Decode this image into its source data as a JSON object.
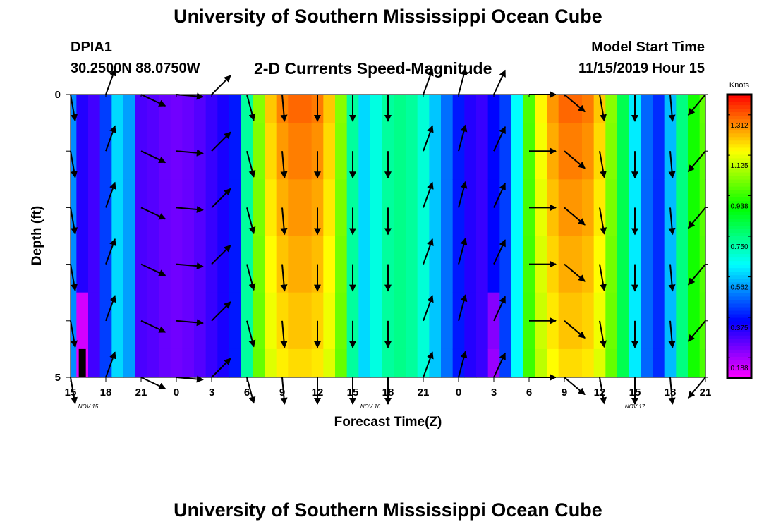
{
  "header": {
    "title": "University of Southern Mississippi Ocean Cube",
    "station": "DPIA1",
    "coords": "30.2500N 88.0750W",
    "subtitle": "2-D Currents Speed-Magnitude",
    "model_label": "Model Start Time",
    "model_time": "11/15/2019 Hour 15"
  },
  "footer": {
    "title": "University of Southern Mississippi Ocean Cube"
  },
  "chart_data": {
    "type": "heatmap",
    "title": "2-D Currents Speed-Magnitude",
    "xlabel": "Forecast Time(Z)",
    "ylabel": "Depth (ft)",
    "x_hours": [
      15,
      16,
      17,
      18,
      19,
      20,
      21,
      22,
      23,
      24,
      25,
      26,
      27,
      28,
      29,
      30,
      31,
      32,
      33,
      34,
      35,
      36,
      37,
      38,
      39,
      40,
      41,
      42,
      43,
      44,
      45,
      46,
      47,
      48,
      49,
      50,
      51,
      52,
      53,
      54,
      55,
      56,
      57,
      58,
      59,
      60,
      61,
      62,
      63,
      64,
      65,
      66,
      67,
      68,
      69
    ],
    "xlim": [
      15,
      69
    ],
    "ylim": [
      0,
      5
    ],
    "x_tick_labels": [
      "15",
      "18",
      "21",
      "0",
      "3",
      "6",
      "9",
      "12",
      "15",
      "18",
      "21",
      "0",
      "3",
      "6",
      "9",
      "12",
      "15",
      "18",
      "21"
    ],
    "date_labels": [
      "NOV 15",
      "NOV 16",
      "NOV 17"
    ],
    "y_tick_labels": [
      "0",
      "5"
    ],
    "colorbar": {
      "unit": "Knots",
      "range": [
        0.094,
        1.406
      ],
      "ticks": [
        "1.312",
        "1.125",
        "0.938",
        "0.750",
        "0.562",
        "0.375",
        "0.188"
      ]
    },
    "speed_profile_knots": [
      0.5,
      0.32,
      0.29,
      0.42,
      0.58,
      0.52,
      0.28,
      0.27,
      0.25,
      0.24,
      0.25,
      0.27,
      0.3,
      0.33,
      0.38,
      0.72,
      1.02,
      1.2,
      1.27,
      1.3,
      1.3,
      1.28,
      1.2,
      1.02,
      0.72,
      0.58,
      0.65,
      0.72,
      0.74,
      0.72,
      0.66,
      0.56,
      0.47,
      0.38,
      0.32,
      0.3,
      0.36,
      0.42,
      0.62,
      0.96,
      1.15,
      1.25,
      1.3,
      1.3,
      1.28,
      1.2,
      1.02,
      0.8,
      0.6,
      0.46,
      0.4,
      0.55,
      0.75,
      0.9,
      0.98
    ],
    "low_speed_cells": [
      {
        "hour": 16,
        "depth_level": 5,
        "speed": 0.12
      },
      {
        "hour": 16,
        "depth_level": 4,
        "speed": 0.14
      },
      {
        "hour": 51,
        "depth_level": 5,
        "speed": 0.2
      },
      {
        "hour": 51,
        "depth_level": 4,
        "speed": 0.22
      }
    ],
    "no_data_cells": [
      {
        "hour": 16,
        "depth_band": "4.5-5"
      }
    ],
    "vector_hours": [
      15,
      18,
      21,
      24,
      27,
      30,
      33,
      36,
      39,
      42,
      45,
      48,
      51,
      54,
      57,
      60,
      63,
      66,
      69
    ],
    "vector_depths_ft": [
      0,
      1,
      2,
      3,
      4,
      5
    ],
    "vector_directions_deg": [
      170,
      20,
      115,
      95,
      45,
      165,
      175,
      180,
      180,
      180,
      20,
      15,
      25,
      90,
      130,
      170,
      180,
      175,
      220
    ]
  }
}
